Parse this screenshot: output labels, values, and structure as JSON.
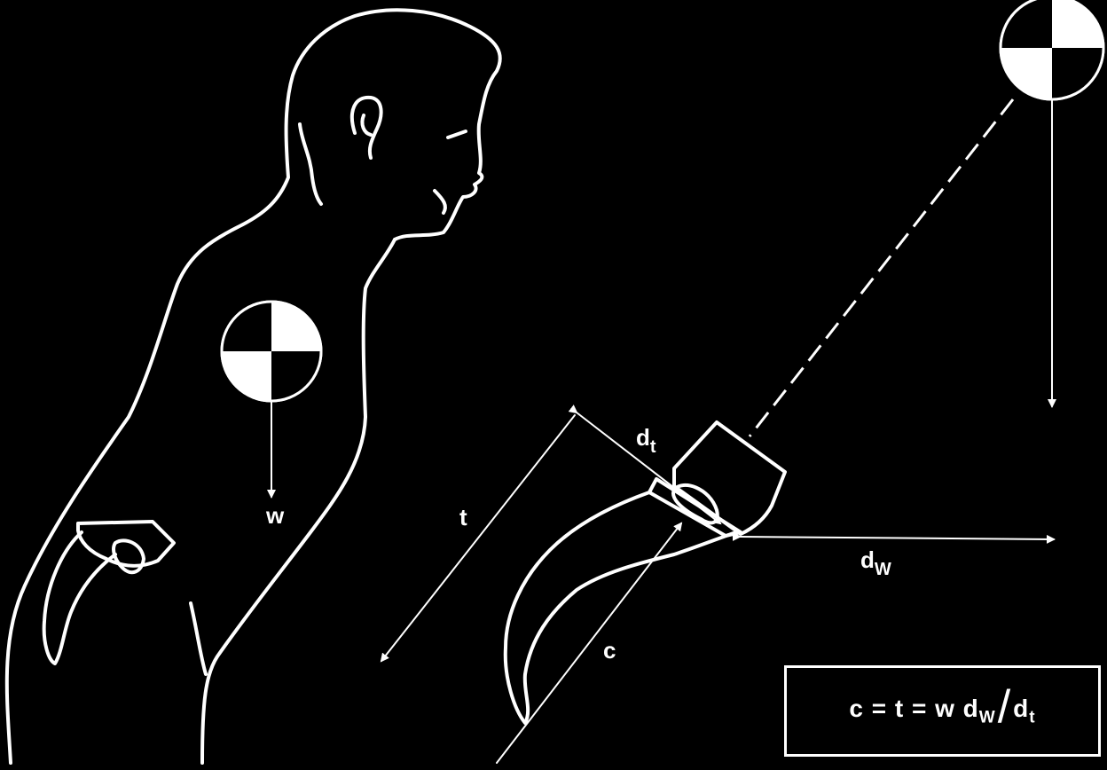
{
  "labels": {
    "w": "w",
    "t": "t",
    "c": "c",
    "d_t": "d",
    "d_t_sub": "t",
    "d_w": "d",
    "d_w_sub": "W"
  },
  "formula": {
    "lhs": "c = t = w d",
    "sub_w": "W",
    "slash": "/",
    "d": "d",
    "sub_t": "t"
  },
  "colors": {
    "background": "#000000",
    "foreground": "#ffffff"
  },
  "icons": [
    "center-of-gravity-marker",
    "arrow"
  ]
}
